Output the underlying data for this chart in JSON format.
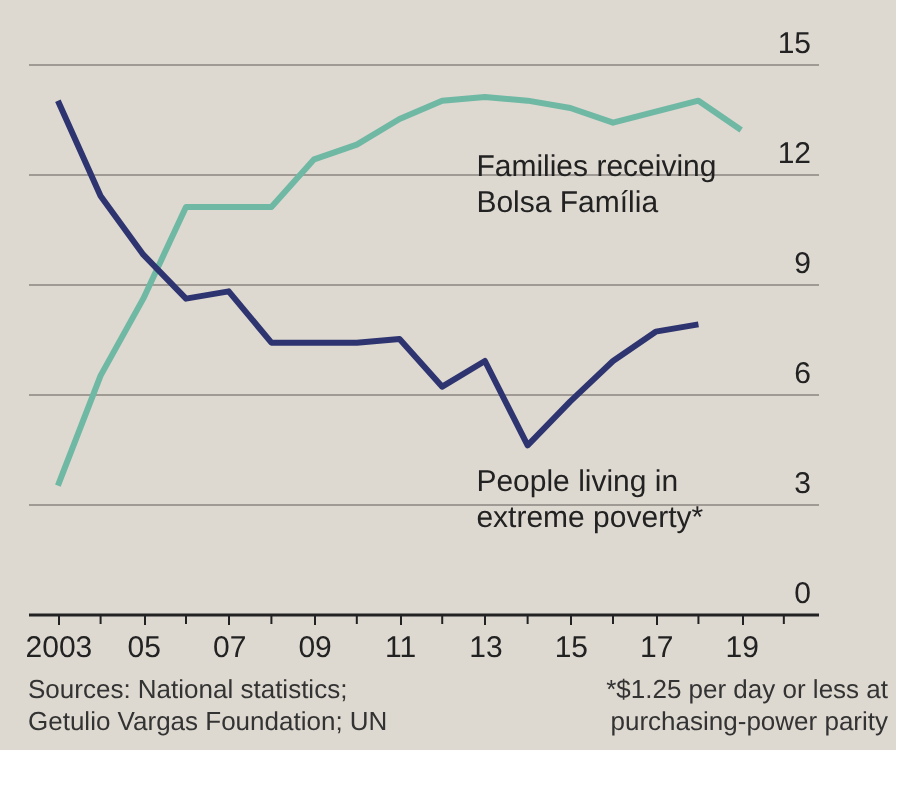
{
  "chart_data": {
    "type": "line",
    "x": [
      2003,
      2004,
      2005,
      2006,
      2007,
      2008,
      2009,
      2010,
      2011,
      2012,
      2013,
      2014,
      2015,
      2016,
      2017,
      2018,
      2019
    ],
    "series": [
      {
        "name": "Families receiving Bolsa Família",
        "color": "#6fb8a4",
        "values": [
          3.5,
          6.5,
          8.6,
          11.1,
          11.1,
          11.1,
          12.4,
          12.8,
          13.5,
          14.0,
          14.1,
          14.0,
          13.8,
          13.4,
          13.7,
          14.0,
          13.2
        ]
      },
      {
        "name": "People living in extreme poverty*",
        "color": "#2e3470",
        "values": [
          14.0,
          11.4,
          9.8,
          8.6,
          8.8,
          7.4,
          7.4,
          7.4,
          7.5,
          6.2,
          6.9,
          4.6,
          5.8,
          6.9,
          7.7,
          7.9,
          null
        ]
      }
    ],
    "xlim": [
      2002.3,
      2020.8
    ],
    "xticks": [
      {
        "value": 2003,
        "label": "2003"
      },
      {
        "value": 2004,
        "label": null
      },
      {
        "value": 2005,
        "label": "05"
      },
      {
        "value": 2006,
        "label": null
      },
      {
        "value": 2007,
        "label": "07"
      },
      {
        "value": 2008,
        "label": null
      },
      {
        "value": 2009,
        "label": "09"
      },
      {
        "value": 2010,
        "label": null
      },
      {
        "value": 2011,
        "label": "11"
      },
      {
        "value": 2012,
        "label": null
      },
      {
        "value": 2013,
        "label": "13"
      },
      {
        "value": 2014,
        "label": null
      },
      {
        "value": 2015,
        "label": "15"
      },
      {
        "value": 2016,
        "label": null
      },
      {
        "value": 2017,
        "label": "17"
      },
      {
        "value": 2018,
        "label": null
      },
      {
        "value": 2019,
        "label": "19"
      },
      {
        "value": 2020,
        "label": null
      }
    ],
    "ylim": [
      0,
      15
    ],
    "yticks": [
      0,
      3,
      6,
      9,
      12,
      15
    ],
    "grid": "y",
    "legend": false,
    "annotations": [
      "Sources: National statistics; Getulio Vargas Foundation; UN",
      "*$1.25 per day or less at purchasing-power parity"
    ]
  }
}
